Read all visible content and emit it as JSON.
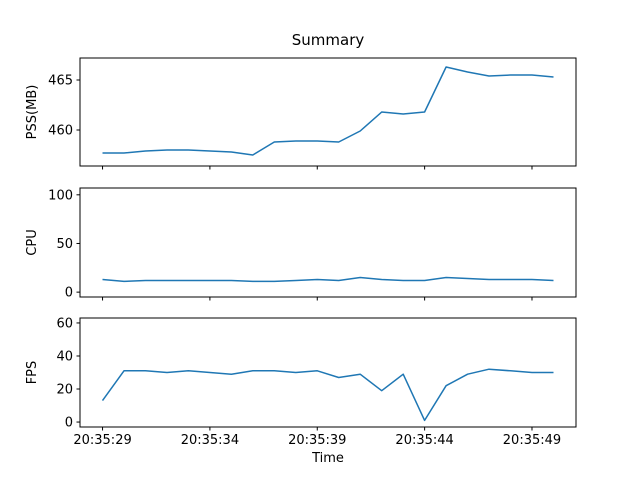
{
  "figure": {
    "title": "Summary",
    "xlabel": "Time",
    "line_color": "#1f77b4",
    "background": "#ffffff",
    "text_color": "#000000"
  },
  "x_axis": {
    "x": [
      29,
      30,
      31,
      32,
      33,
      34,
      35,
      36,
      37,
      38,
      39,
      40,
      41,
      42,
      43,
      44,
      45,
      46,
      47,
      48,
      49,
      50
    ],
    "xlim": [
      27.95,
      51.05
    ],
    "xticks": [
      29,
      34,
      39,
      44,
      49
    ],
    "xtick_labels": [
      "20:35:29",
      "20:35:34",
      "20:35:39",
      "20:35:44",
      "20:35:49"
    ]
  },
  "chart_data": [
    {
      "type": "line",
      "name": "pss",
      "ylabel": "PSS(MB)",
      "ylim": [
        456.4,
        467.2
      ],
      "yticks": [
        460,
        465
      ],
      "values": [
        457.7,
        457.7,
        457.9,
        458.0,
        458.0,
        457.9,
        457.8,
        457.5,
        458.8,
        458.9,
        458.9,
        458.8,
        459.9,
        461.8,
        461.6,
        461.8,
        466.3,
        465.8,
        465.4,
        465.5,
        465.5,
        465.3
      ]
    },
    {
      "type": "line",
      "name": "cpu",
      "ylabel": "CPU",
      "ylim": [
        -5,
        107
      ],
      "yticks": [
        0,
        50,
        100
      ],
      "values": [
        13,
        11,
        12,
        12,
        12,
        12,
        12,
        11,
        11,
        12,
        13,
        12,
        15,
        13,
        12,
        12,
        15,
        14,
        13,
        13,
        13,
        12
      ]
    },
    {
      "type": "line",
      "name": "fps",
      "ylabel": "FPS",
      "ylim": [
        -3,
        63
      ],
      "yticks": [
        0,
        20,
        40,
        60
      ],
      "values": [
        13,
        31,
        31,
        30,
        31,
        30,
        29,
        31,
        31,
        30,
        31,
        27,
        29,
        19,
        29,
        1,
        22,
        29,
        32,
        31,
        30,
        30
      ]
    }
  ]
}
